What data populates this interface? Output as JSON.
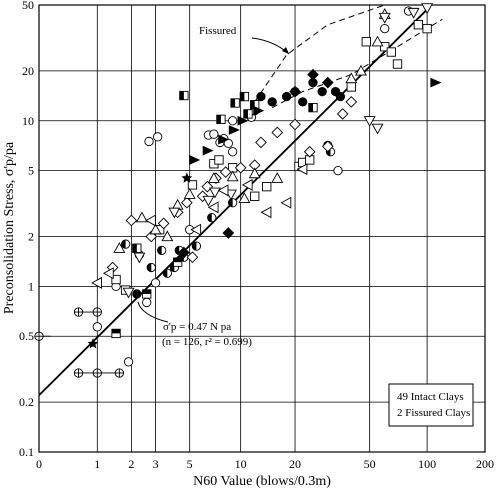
{
  "chart_data": {
    "type": "scatter",
    "xlabel": "N60 Value (blows/0.3m)",
    "ylabel": "Preconsolidation Stress, σ'p/pa",
    "x_scale": "log(N+1)",
    "y_scale": "log",
    "xlim": [
      0,
      200
    ],
    "ylim": [
      0.1,
      50
    ],
    "x_ticks": [
      0,
      1,
      2,
      3,
      5,
      10,
      20,
      50,
      100,
      200
    ],
    "x_tick_labels": [
      "0",
      "1",
      "2",
      "3",
      "5",
      "10",
      "20",
      "50",
      "100",
      "200"
    ],
    "y_ticks": [
      0.1,
      0.2,
      0.5,
      1,
      2,
      5,
      10,
      20,
      50
    ],
    "y_tick_labels": [
      "0.1",
      "0.2",
      "0.5",
      "1",
      "2",
      "5",
      "10",
      "20",
      "50"
    ],
    "grid": true,
    "annotations": {
      "fissured_label": "Fissured",
      "equation_line1": "σ'p = 0.47 N pa",
      "equation_line2": "(n = 126, r² = 0.699)"
    },
    "legend": {
      "placement": "bottom-right",
      "lines": [
        "49 Intact Clays",
        "2 Fissured Clays"
      ]
    },
    "regression_line": {
      "label": "σ'p = 0.47 N pa",
      "points": [
        [
          0,
          0.22
        ],
        [
          100,
          47
        ]
      ]
    },
    "fissured_envelope": {
      "upper": [
        [
          12,
          13
        ],
        [
          18,
          25
        ],
        [
          30,
          38
        ],
        [
          60,
          50
        ]
      ],
      "lower": [
        [
          15,
          12
        ],
        [
          22,
          15
        ],
        [
          40,
          19
        ],
        [
          70,
          28
        ],
        [
          120,
          41
        ]
      ]
    },
    "series": [
      {
        "marker": "circle-plus",
        "x": [
          0,
          0.6,
          1,
          0.6,
          1,
          1.6
        ],
        "y": [
          0.5,
          0.7,
          0.7,
          0.3,
          0.3,
          0.3
        ]
      },
      {
        "marker": "circle",
        "x": [
          1,
          1.5,
          1.9,
          2.6,
          3,
          2.7,
          3.1,
          6.5,
          7,
          7.6,
          8,
          8.5,
          9,
          11.5,
          12,
          34,
          60,
          80,
          9,
          5
        ],
        "y": [
          0.57,
          1.0,
          0.35,
          0.8,
          1.05,
          7.5,
          8.0,
          8.2,
          8.3,
          7.4,
          7.8,
          7.3,
          6.5,
          10.5,
          11.5,
          5.0,
          36,
          46,
          10,
          2.2
        ]
      },
      {
        "marker": "filled-circle",
        "x": [
          13,
          15,
          18,
          20,
          22,
          25,
          28,
          33,
          35,
          40,
          2.2
        ],
        "y": [
          14,
          13,
          14,
          15,
          13,
          17,
          15,
          15,
          14,
          16,
          0.9
        ]
      },
      {
        "marker": "half-circle",
        "x": [
          1.8,
          2.8,
          2.3,
          3.3,
          3.6,
          4,
          4.6,
          5.5,
          6.8,
          4.3,
          9,
          30,
          31
        ],
        "y": [
          1.8,
          1.3,
          1.55,
          1.65,
          1.2,
          1.3,
          1.5,
          1.75,
          2.6,
          1.65,
          3.2,
          7.1,
          6.5
        ]
      },
      {
        "marker": "square",
        "x": [
          1.5,
          1.8,
          3.2,
          5.2,
          7,
          7.5,
          9,
          12,
          14,
          21,
          22,
          24,
          40,
          48,
          60,
          65,
          70,
          90,
          100
        ],
        "y": [
          1.1,
          0.95,
          2.2,
          4.1,
          5.5,
          5.8,
          5.2,
          3.5,
          4.0,
          5.3,
          5.6,
          5.8,
          16,
          30,
          28,
          26,
          22,
          38,
          36
        ]
      },
      {
        "marker": "half-square",
        "x": [
          2.2,
          4.6,
          7.7,
          9.3,
          10.5,
          11,
          12,
          25
        ],
        "y": [
          1.7,
          14.2,
          10.2,
          12.8,
          14,
          11,
          12.5,
          12
        ]
      },
      {
        "marker": "filled-square",
        "x": [
          1.5,
          2.6,
          4.2
        ],
        "y": [
          0.52,
          0.9,
          1.4
        ]
      },
      {
        "marker": "diamond",
        "x": [
          1.4,
          2,
          2.8,
          3.4,
          4.2,
          4.8,
          5.2,
          6,
          6.4,
          7.2,
          8.2,
          10,
          12,
          13,
          16,
          20,
          24,
          30,
          36,
          40
        ],
        "y": [
          1.3,
          2.5,
          2.0,
          2.4,
          2.8,
          3.2,
          1.5,
          3.5,
          4.0,
          4.5,
          4.9,
          5.2,
          5.4,
          7.4,
          8.5,
          9.5,
          6.5,
          7.0,
          11,
          13
        ]
      },
      {
        "marker": "filled-diamond",
        "x": [
          4.6,
          8.5,
          20,
          25,
          30
        ],
        "y": [
          1.6,
          2.1,
          15,
          19,
          17
        ]
      },
      {
        "marker": "triangle-up",
        "x": [
          1.6,
          2.4,
          3,
          3.6,
          4.2,
          5,
          7,
          9,
          10.5,
          12,
          16,
          40,
          45,
          55,
          60
        ],
        "y": [
          1.7,
          2.6,
          2.2,
          2.0,
          3.1,
          3.6,
          4.5,
          4.6,
          3.4,
          4.8,
          4.5,
          18,
          20,
          30,
          44
        ]
      },
      {
        "marker": "triangle-down",
        "x": [
          1.9,
          2.3,
          4,
          6.5,
          7.1,
          8.8,
          50,
          55,
          60,
          85,
          100
        ],
        "y": [
          0.92,
          1.5,
          2.8,
          3.3,
          3.7,
          3.6,
          10,
          9,
          42,
          45,
          48
        ]
      },
      {
        "marker": "triangle-left",
        "x": [
          1,
          1.3,
          2.8,
          5.5,
          7,
          8,
          11,
          14,
          18,
          22
        ],
        "y": [
          1.05,
          1.2,
          2.5,
          2.2,
          3.0,
          3.8,
          4.1,
          2.8,
          3.2,
          5.1
        ]
      },
      {
        "marker": "filled-triangle",
        "x": [
          5.3,
          6.4,
          7.9,
          9.1,
          10.2,
          12.5,
          110
        ],
        "y": [
          5.8,
          6.6,
          7.7,
          8.8,
          10,
          11.5,
          17
        ]
      },
      {
        "marker": "filled-star",
        "x": [
          4.8,
          0.9
        ],
        "y": [
          4.5,
          0.45
        ]
      }
    ]
  }
}
